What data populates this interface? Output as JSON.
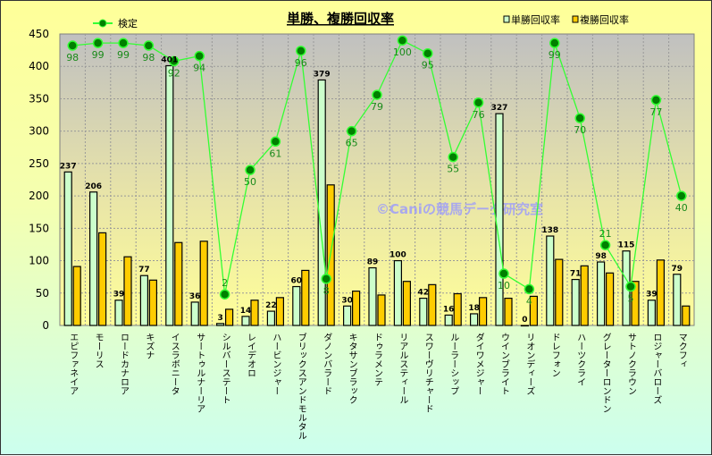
{
  "chart_data": {
    "type": "bar",
    "title": "単勝、複勝回収率",
    "watermark": "©Caniの競馬データ研究室",
    "xlabel": "",
    "ylabel": "",
    "ylim": [
      0,
      450
    ],
    "yticks": [
      0,
      50,
      100,
      150,
      200,
      250,
      300,
      350,
      400,
      450
    ],
    "grid": true,
    "legend_placement": "top",
    "categories": [
      "エピファネイア",
      "モーリス",
      "ロードカナロア",
      "キズナ",
      "イスラボニータ",
      "サートゥルナーリア",
      "シルバーステート",
      "レイデオロ",
      "ハービンジャー",
      "ブリックスアンドモルタル",
      "ダノンバラード",
      "キタサンブラック",
      "ドゥラメンテ",
      "リアルスティール",
      "スワーヴリチャード",
      "ルーラーシップ",
      "ダイワメジャー",
      "ウインブライト",
      "リオンディーズ",
      "ドレフォン",
      "ハーツクライ",
      "グレーターロンドン",
      "サトノクラウン",
      "ロジャーバローズ",
      "マクフィ"
    ],
    "series": [
      {
        "name": "単勝回収率",
        "type": "bar",
        "color": "#ccffcc",
        "values": [
          237,
          206,
          39,
          77,
          401,
          36,
          3,
          14,
          22,
          60,
          379,
          30,
          89,
          100,
          42,
          16,
          18,
          327,
          0,
          138,
          71,
          98,
          115,
          39,
          79
        ]
      },
      {
        "name": "複勝回収率",
        "type": "bar",
        "color": "#ffcc00",
        "values": [
          91,
          143,
          106,
          70,
          128,
          130,
          25,
          39,
          43,
          85,
          217,
          53,
          47,
          68,
          63,
          49,
          43,
          42,
          45,
          102,
          92,
          81,
          68,
          101,
          30
        ]
      },
      {
        "name": "検定",
        "type": "line",
        "color": "#33ff33",
        "marker_color": "#008000",
        "secondary_axis_range": [
          -10,
          102.5
        ],
        "values": [
          98,
          99,
          99,
          98,
          92,
          94,
          2,
          50,
          61,
          96,
          8,
          65,
          79,
          100,
          95,
          55,
          76,
          10,
          4,
          99,
          70,
          21,
          5,
          77,
          40
        ]
      }
    ]
  }
}
